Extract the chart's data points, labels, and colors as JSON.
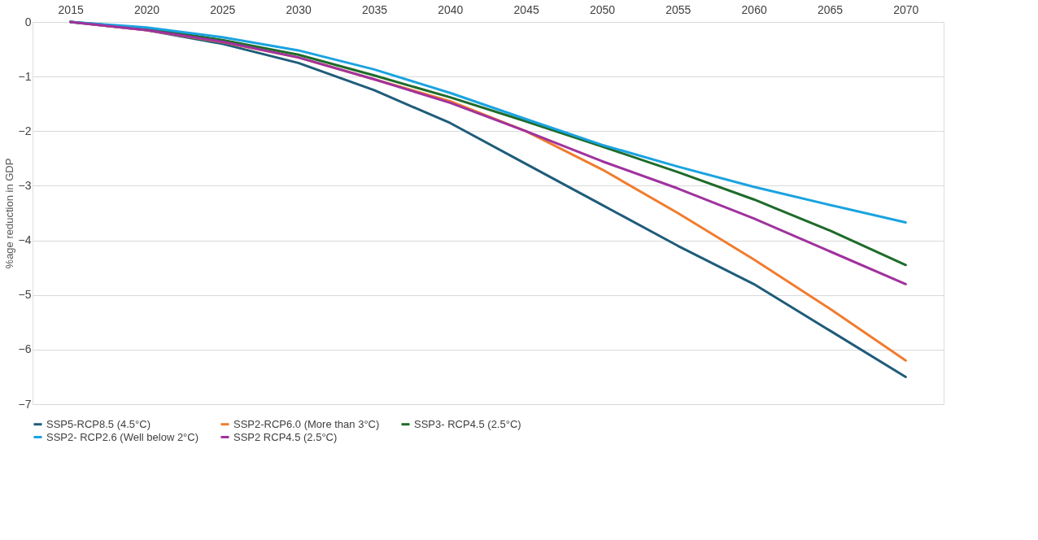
{
  "chart_data": {
    "type": "line",
    "ylabel": "%age reduction in GDP",
    "categories": [
      "2015",
      "2020",
      "2025",
      "2030",
      "2035",
      "2040",
      "2045",
      "2050",
      "2055",
      "2060",
      "2065",
      "2070"
    ],
    "series": [
      {
        "name": "SSP5-RCP8.5 (4.5°C)",
        "color": "#1f5c7a",
        "values": [
          0,
          -0.15,
          -0.4,
          -0.75,
          -1.25,
          -1.85,
          -2.6,
          -3.35,
          -4.1,
          -4.8,
          -5.65,
          -6.5
        ]
      },
      {
        "name": "SSP2-RCP6.0 (More than 3°C)",
        "color": "#f07c2f",
        "values": [
          0,
          -0.15,
          -0.37,
          -0.65,
          -1.05,
          -1.45,
          -2.0,
          -2.7,
          -3.5,
          -4.35,
          -5.25,
          -6.2
        ]
      },
      {
        "name": "SSP3- RCP4.5 (2.5°C)",
        "color": "#1e6b2a",
        "values": [
          0,
          -0.12,
          -0.33,
          -0.6,
          -0.98,
          -1.38,
          -1.82,
          -2.28,
          -2.75,
          -3.25,
          -3.82,
          -4.45
        ]
      },
      {
        "name": "SSP2- RCP2.6 (Well below 2°C)",
        "color": "#1aa3e0",
        "values": [
          0,
          -0.1,
          -0.28,
          -0.52,
          -0.87,
          -1.3,
          -1.78,
          -2.25,
          -2.65,
          -3.02,
          -3.35,
          -3.67
        ]
      },
      {
        "name": "SSP2 RCP4.5 (2.5°C)",
        "color": "#a0329e",
        "values": [
          0,
          -0.15,
          -0.36,
          -0.65,
          -1.05,
          -1.48,
          -2.0,
          -2.55,
          -3.05,
          -3.6,
          -4.2,
          -4.8
        ]
      }
    ],
    "ylim": [
      -7,
      0
    ],
    "yticks": [
      -7,
      -6,
      -5,
      -4,
      -3,
      -2,
      -1,
      0
    ],
    "grid": "y",
    "legend": "bottom",
    "marker": "none",
    "line_style": "solid"
  }
}
